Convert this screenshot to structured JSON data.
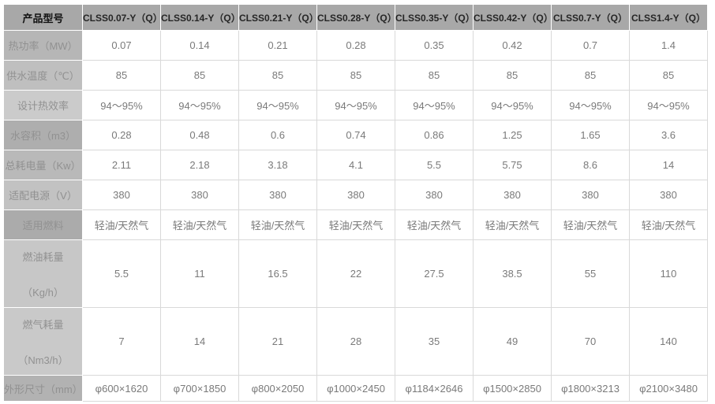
{
  "colors": {
    "page_bg": "#ffffff",
    "header_bg": "#a8a8a8",
    "header_text": "#262626",
    "corner_text": "#111111",
    "label_text": "#919191",
    "value_text": "#7a7a7a",
    "grid_border": "#d9d9d9",
    "cell_bg": "#ffffff"
  },
  "table": {
    "corner_label": "产品型号",
    "models": [
      "CLSS0.07-Y（Q）",
      "CLSS0.14-Y（Q）",
      "CLSS0.21-Y（Q）",
      "CLSS0.28-Y（Q）",
      "CLSS0.35-Y（Q）",
      "CLSS0.42-Y（Q）",
      "CLSS0.7-Y（Q）",
      "CLSS1.4-Y（Q）"
    ],
    "rows": [
      {
        "label": "热功率（MW）",
        "label_bg": "#b6b6b6",
        "values": [
          "0.07",
          "0.14",
          "0.21",
          "0.28",
          "0.35",
          "0.42",
          "0.7",
          "1.4"
        ]
      },
      {
        "label": "供水温度（℃）",
        "label_bg": "#bfbfbf",
        "values": [
          "85",
          "85",
          "85",
          "85",
          "85",
          "85",
          "85",
          "85"
        ]
      },
      {
        "label": "设计热效率",
        "label_bg": "#cbcbcb",
        "values": [
          "94～95%",
          "94～95%",
          "94～95%",
          "94～95%",
          "94～95%",
          "94～95%",
          "94～95%",
          "94～95%"
        ]
      },
      {
        "label": "水容积（m3）",
        "label_bg": "#aeaeae",
        "values": [
          "0.28",
          "0.48",
          "0.6",
          "0.74",
          "0.86",
          "1.25",
          "1.65",
          "3.6"
        ]
      },
      {
        "label": "总耗电量（Kw）",
        "label_bg": "#b9b9b9",
        "values": [
          "2.11",
          "2.18",
          "3.18",
          "4.1",
          "5.5",
          "5.75",
          "8.6",
          "14"
        ]
      },
      {
        "label": "适配电源（V）",
        "label_bg": "#c2c2c2",
        "values": [
          "380",
          "380",
          "380",
          "380",
          "380",
          "380",
          "380",
          "380"
        ]
      },
      {
        "label": "适用燃料",
        "label_bg": "#ababab",
        "values": [
          "轻油/天然气",
          "轻油/天然气",
          "轻油/天然气",
          "轻油/天然气",
          "轻油/天然气",
          "轻油/天然气",
          "轻油/天然气",
          "轻油/天然气"
        ]
      },
      {
        "label": "燃油耗量",
        "label_unit": "（Kg/h）",
        "label_bg": "#c7c7c7",
        "values": [
          "5.5",
          "11",
          "16.5",
          "22",
          "27.5",
          "38.5",
          "55",
          "110"
        ]
      },
      {
        "label": "燃气耗量",
        "label_unit": "（Nm3/h）",
        "label_bg": "#c9c9c9",
        "values": [
          "7",
          "14",
          "21",
          "28",
          "35",
          "49",
          "70",
          "140"
        ]
      },
      {
        "label": "外形尺寸（mm）",
        "label_bg": "#b2b2b2",
        "values": [
          "φ600×1620",
          "φ700×1850",
          "φ800×2050",
          "φ1000×2450",
          "φ1184×2646",
          "φ1500×2850",
          "φ1800×3213",
          "φ2100×3480"
        ]
      }
    ]
  }
}
